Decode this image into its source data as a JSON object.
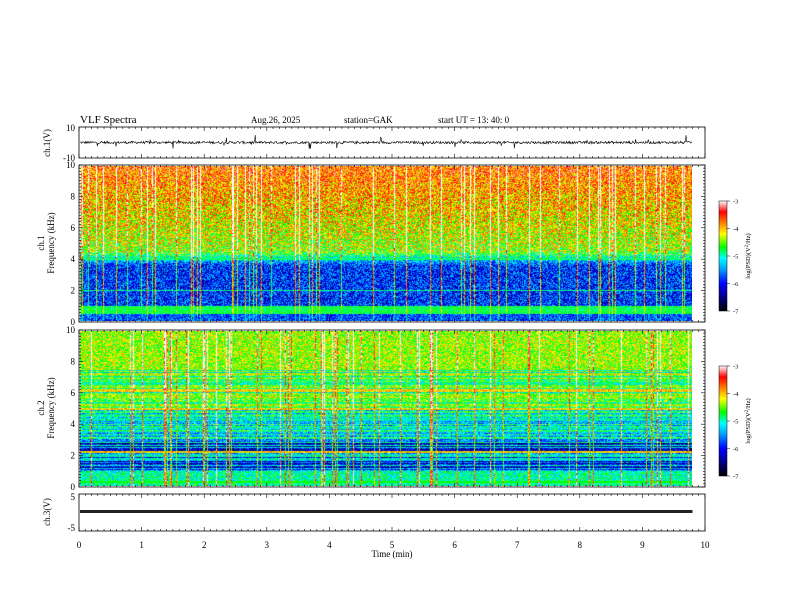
{
  "header": {
    "title": "VLF  Spectra",
    "date": "Aug.26, 2025",
    "station": "station=GAK",
    "start": "start  UT  =   13: 40: 0"
  },
  "chart_data": [
    {
      "type": "line",
      "name": "ch1-waveform",
      "ylabel": "ch.1(V)",
      "ylim": [
        -10,
        10
      ],
      "yticks": [
        "10",
        "-10"
      ],
      "xlim": [
        0,
        10
      ],
      "data_end_min": 9.8
    },
    {
      "type": "heatmap",
      "name": "ch1-spectrogram",
      "ylabel": "ch.1\nFrequency  (kHz)",
      "ylim": [
        0,
        10
      ],
      "yticks": [
        "0",
        "2",
        "4",
        "6",
        "8",
        "10"
      ],
      "xlim": [
        0,
        10
      ],
      "data_end_min": 9.8,
      "colorbar": {
        "label": "log(PSD)(V²/Hz)",
        "range": [
          -7,
          -3
        ],
        "ticks": [
          "-3",
          "-4",
          "-5",
          "-6",
          "-7"
        ]
      }
    },
    {
      "type": "heatmap",
      "name": "ch2-spectrogram",
      "ylabel": "ch.2\nFrequency  (kHz)",
      "ylim": [
        0,
        10
      ],
      "yticks": [
        "0",
        "2",
        "4",
        "6",
        "8",
        "10"
      ],
      "xlim": [
        0,
        10
      ],
      "data_end_min": 9.8,
      "colorbar": {
        "label": "log(PSD)(V²/Hz)",
        "range": [
          -7,
          -3
        ],
        "ticks": [
          "-3",
          "-4",
          "-5",
          "-6",
          "-7"
        ]
      }
    },
    {
      "type": "line",
      "name": "ch3-waveform",
      "ylabel": "ch.3(V)",
      "ylim": [
        -5,
        5
      ],
      "yticks": [
        "5",
        "-5"
      ],
      "xlim": [
        0,
        10
      ],
      "data_end_min": 9.8,
      "xlabel": "Time  (min)",
      "xticks": [
        "0",
        "1",
        "2",
        "3",
        "4",
        "5",
        "6",
        "7",
        "8",
        "9",
        "10"
      ]
    }
  ],
  "colors": {
    "colormap": [
      "#000000",
      "#000080",
      "#0000ff",
      "#00a0ff",
      "#00ffff",
      "#00ff00",
      "#ffff00",
      "#ff8000",
      "#ff0000",
      "#ffffff"
    ]
  }
}
